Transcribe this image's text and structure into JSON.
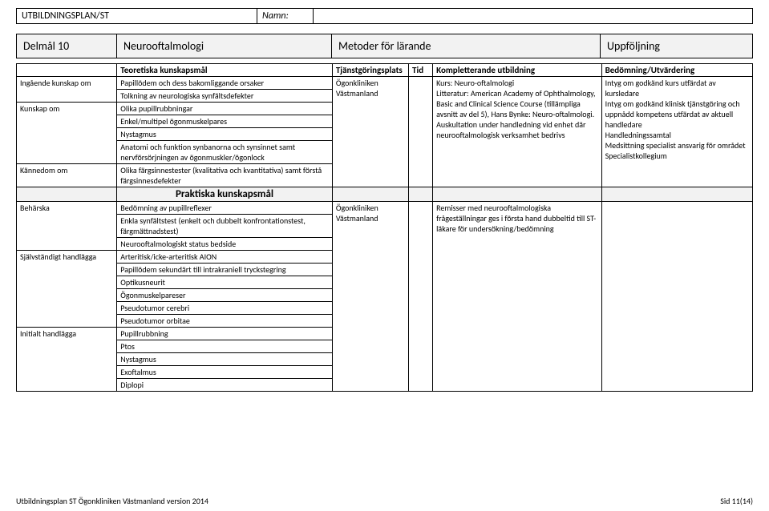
{
  "header": {
    "title": "UTBILDNINGSPLAN/ST",
    "name_label": "Namn:",
    "name_value": ""
  },
  "band": {
    "col1": "Delmål 10",
    "col2": "Neurooftalmologi",
    "col3": "Metoder för lärande",
    "col4": "Uppföljning"
  },
  "table": {
    "headers": {
      "a": "",
      "b": "Teoretiska kunskapsmål",
      "c": "Tjänstgöringsplats",
      "d": "Tid",
      "e": "Kompletterande utbildning",
      "f": "Bedömning/Utvärdering"
    },
    "sec1": {
      "a1": "Ingående kunskap om",
      "b1": "Papillödem och dess bakomliggande orsaker",
      "b2": "Tolkning av neurologiska synfältsdefekter",
      "a3": "Kunskap om",
      "b3": "Olika pupillrubbningar",
      "b4": "Enkel/multipel ögonmuskelpares",
      "b5": "Nystagmus",
      "b6": "Anatomi och funktion synbanorna och synsinnet samt nervförsörjningen av ögonmuskler/ögonlock",
      "a7": "Kännedom om",
      "b7": "Olika färgsinnestester (kvalitativa och kvantitativa) samt förstå färgsinnesdefekter",
      "c1": "Ögonkliniken",
      "c2": "Västmanland",
      "e1": "Kurs: Neuro-oftalmologi",
      "e2": "Litteratur: American Academy of Ophthalmology, Basic and Clinical Science Course (tillämpliga avsnitt av del 5), Hans Bynke: Neuro-oftalmologi.",
      "e3": "Auskultation under handledning vid enhet där neurooftalmologisk verksamhet bedrivs",
      "f1": "Intyg om godkänd kurs utfärdat av kursledare",
      "f2": "Intyg om godkänd klinisk tjänstgöring och uppnådd kompetens utfärdat av aktuell handledare",
      "f3": "Handledningssamtal",
      "f4": "Medsittning specialist ansvarig för området",
      "f5": "Specialistkollegium"
    },
    "praktiska": "Praktiska kunskapsmål",
    "sec2": {
      "a1": "Behärska",
      "b1": "Bedömning av pupillreflexer",
      "b2": "Enkla synfältstest (enkelt och dubbelt konfrontationstest, färgmättnadstest)",
      "b3": "Neurooftalmologiskt status bedside",
      "a4": "Självständigt handlägga",
      "b4": "Arteritisk/icke-arteritisk AION",
      "b5": "Papillödem sekundärt till intrakraniell tryckstegring",
      "b6": "Optikusneurit",
      "b7": "Ögonmuskelpareser",
      "b8": "Pseudotumor cerebri",
      "b9": "Pseudotumor orbitae",
      "a10": "Initialt handlägga",
      "b10": "Pupillrubbning",
      "b11": "Ptos",
      "b12": "Nystagmus",
      "b13": "Exoftalmus",
      "b14": "Diplopi",
      "c1": "Ögonkliniken",
      "c2": "Västmanland",
      "e1": "Remisser med neurooftalmologiska frågeställningar ges i första hand dubbeltid till ST-läkare för undersökning/bedömning"
    }
  },
  "footer": {
    "left": "Utbildningsplan ST Ögonkliniken Västmanland version 2014",
    "right": "Sid 11(14)"
  }
}
